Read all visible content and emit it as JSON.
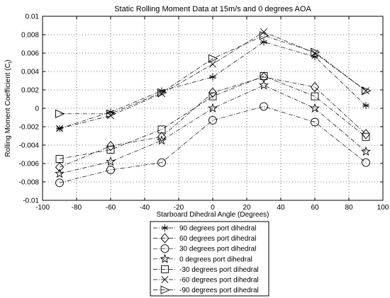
{
  "chart_data": {
    "type": "line",
    "title": "Static Rolling Moment Data at 15m/s and 0 degrees AOA",
    "xlabel": "Starboard Dihedral Angle (Degrees)",
    "ylabel_main": "Rolling Moment Coefficient (C",
    "ylabel_sub": "l",
    "ylabel_close": ")",
    "xlim": [
      -100,
      100
    ],
    "ylim": [
      -0.01,
      0.01
    ],
    "xticks": [
      -100,
      -80,
      -60,
      -40,
      -20,
      0,
      20,
      40,
      60,
      80,
      100
    ],
    "yticks": [
      -0.01,
      -0.008,
      -0.006,
      -0.004,
      -0.002,
      0,
      0.002,
      0.004,
      0.006,
      0.008,
      0.01
    ],
    "xtick_labels": [
      "-100",
      "-80",
      "-60",
      "-40",
      "-20",
      "0",
      "20",
      "40",
      "60",
      "80",
      "100"
    ],
    "ytick_labels": [
      "-0.01",
      "-0.008",
      "-0.006",
      "-0.004",
      "-0.002",
      "0",
      "0.002",
      "0.004",
      "0.006",
      "0.008",
      "0.01"
    ],
    "grid": true,
    "legend_position": "bottom-center",
    "x": [
      -90,
      -60,
      -30,
      0,
      30,
      60,
      90
    ],
    "series": [
      {
        "name": "90 degrees port dihedral",
        "marker": "star6",
        "values": [
          -0.0022,
          -0.0004,
          0.0019,
          0.0034,
          0.0072,
          0.0056,
          0.0003
        ]
      },
      {
        "name": "60 degrees port dihedral",
        "marker": "diamond",
        "values": [
          -0.0064,
          -0.0041,
          -0.0031,
          0.0017,
          0.0034,
          0.0023,
          -0.0028
        ]
      },
      {
        "name": "30 degrees port dihedral",
        "marker": "circle",
        "values": [
          -0.0081,
          -0.0067,
          -0.0059,
          -0.0013,
          0.0002,
          -0.0015,
          -0.0059
        ]
      },
      {
        "name": "0 degrees port dihedral",
        "marker": "pentagram",
        "values": [
          -0.0071,
          -0.0058,
          -0.0035,
          0.0,
          0.0025,
          0.0,
          -0.0047
        ]
      },
      {
        "name": "-30 degrees port dihedral",
        "marker": "square",
        "values": [
          -0.0055,
          -0.0045,
          -0.0023,
          0.0013,
          0.0035,
          0.0013,
          -0.0031
        ]
      },
      {
        "name": "-60 degrees port dihedral",
        "marker": "x",
        "values": [
          -0.0022,
          -0.0008,
          0.0016,
          0.0048,
          0.0083,
          0.006,
          0.0019
        ]
      },
      {
        "name": "-90 degrees port dihedral",
        "marker": "triangle-right",
        "values": [
          -0.0006,
          -0.0006,
          0.0017,
          0.0054,
          0.0079,
          0.0061,
          0.0019
        ]
      }
    ]
  }
}
